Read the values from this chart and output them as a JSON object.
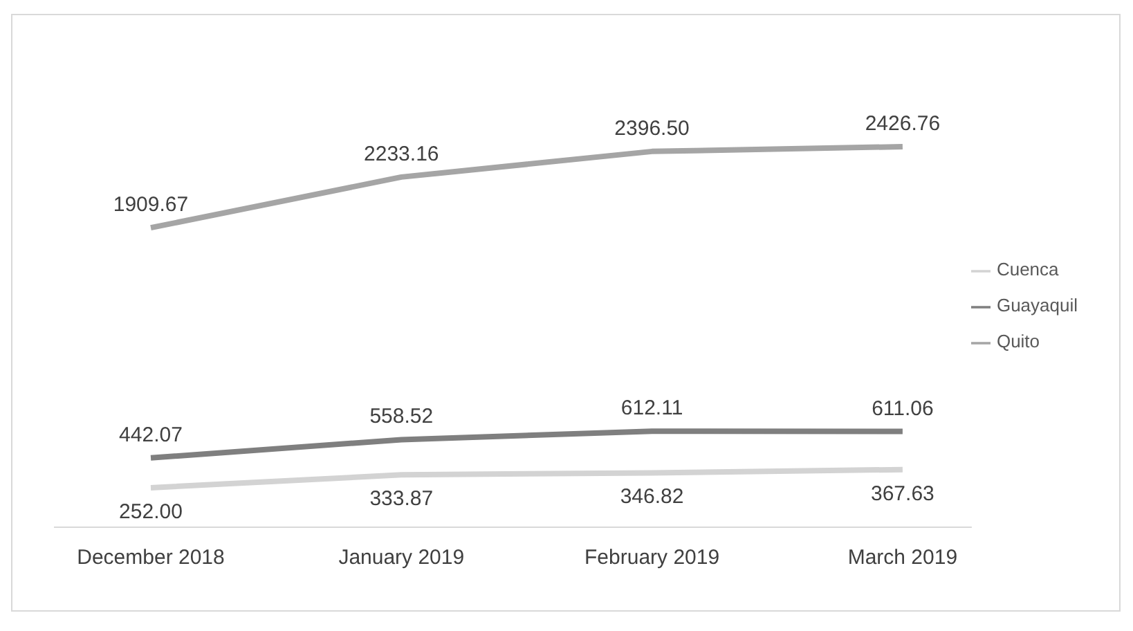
{
  "chart_data": {
    "type": "line",
    "categories": [
      "December 2018",
      "January 2019",
      "February 2019",
      "March 2019"
    ],
    "series": [
      {
        "name": "Guayaquil",
        "color": "#7f7f7f",
        "values": [
          442.07,
          558.52,
          612.11,
          611.06
        ],
        "value_labels": [
          "442.07",
          "558.52",
          "612.11",
          "611.06"
        ]
      },
      {
        "name": "Quito",
        "color": "#a5a5a5",
        "values": [
          1909.67,
          2233.16,
          2396.5,
          2426.76
        ],
        "value_labels": [
          "1909.67",
          "2233.16",
          "2396.50",
          "2426.76"
        ]
      },
      {
        "name": "Cuenca",
        "color": "#d3d3d3",
        "values": [
          252.0,
          333.87,
          346.82,
          367.63
        ],
        "value_labels": [
          "252.00",
          "333.87",
          "346.82",
          "367.63"
        ]
      }
    ],
    "legend": "right",
    "grid": false,
    "marker": "none",
    "line_style": "solid"
  }
}
